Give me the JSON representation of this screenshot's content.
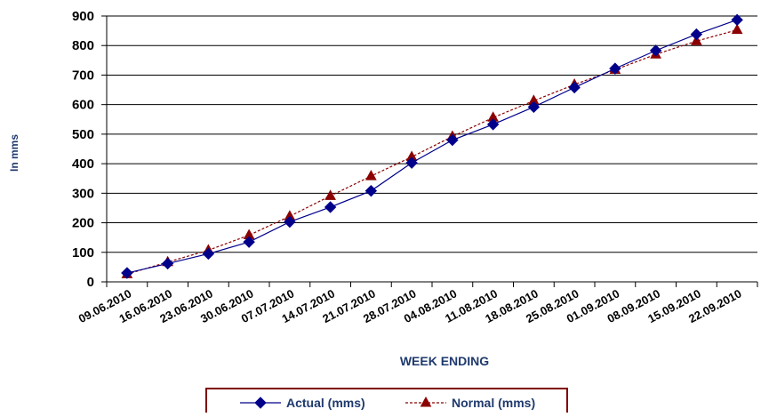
{
  "chart_data": {
    "type": "line",
    "title": "",
    "xlabel": "WEEK ENDING",
    "ylabel": "In mms",
    "categories": [
      "09.06.2010",
      "16.06.2010",
      "23.06.2010",
      "30.06.2010",
      "07.07.2010",
      "14.07.2010",
      "21.07.2010",
      "28.07.2010",
      "04.08.2010",
      "11.08.2010",
      "18.08.2010",
      "25.08.2010",
      "01.09.2010",
      "08.09.2010",
      "15.09.2010",
      "22.09.2010"
    ],
    "ylim": [
      0,
      900
    ],
    "yticks": [
      0,
      100,
      200,
      300,
      400,
      500,
      600,
      700,
      800,
      900
    ],
    "grid": true,
    "legend_position": "bottom",
    "series": [
      {
        "name": "Actual (mms)",
        "color": "#00008b",
        "line_style": "solid",
        "marker": "diamond",
        "values": [
          30,
          62,
          95,
          135,
          203,
          253,
          308,
          403,
          480,
          533,
          592,
          658,
          722,
          783,
          838,
          887
        ]
      },
      {
        "name": "Normal (mms)",
        "color": "#8b0000",
        "line_style": "dashed",
        "marker": "triangle",
        "values": [
          26,
          67,
          107,
          158,
          222,
          291,
          358,
          423,
          492,
          556,
          613,
          668,
          718,
          770,
          815,
          853
        ]
      }
    ]
  }
}
